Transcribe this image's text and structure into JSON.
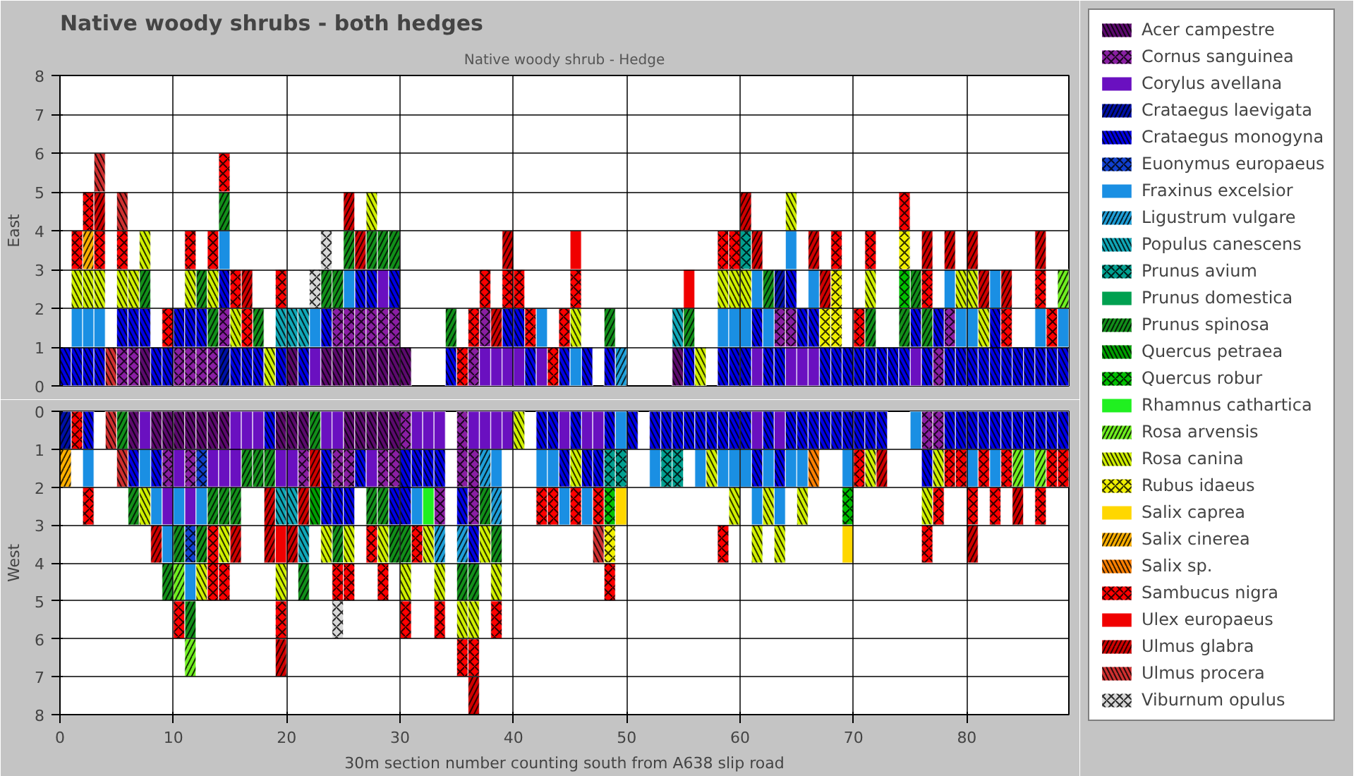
{
  "chart_data": [
    {
      "type": "bar",
      "title": "Native woody shrubs - both hedges",
      "subtitle": "Native woody shrub - Hedge",
      "ylabel": "East",
      "xlim": [
        0,
        89
      ],
      "ylim": [
        0,
        8
      ],
      "xticks": [
        0,
        10,
        20,
        30,
        40,
        50,
        60,
        70,
        80
      ],
      "yticks": [
        0,
        1,
        2,
        3,
        4,
        5,
        6,
        7,
        8
      ],
      "grid": true,
      "legend": "right",
      "tick_labels": "y",
      "series": [
        {
          "name": "Acer campestre",
          "color": "#5c0a6e",
          "x": [
            7.5,
            20.5,
            23.5,
            24.5,
            25.5,
            26.5,
            27.5,
            28.5,
            29.5,
            30.5,
            54.5
          ],
          "base": [
            0,
            0,
            0,
            0,
            0,
            0,
            0,
            0,
            0,
            0,
            0
          ],
          "values": [
            1,
            1,
            1,
            1,
            1,
            1,
            1,
            1,
            1,
            1,
            1
          ]
        },
        {
          "name": "Cornus sanguinea",
          "color": "#8a1fa3",
          "x": [
            5.5,
            6.5,
            10.5,
            11.5,
            12.5,
            13.5,
            14.5,
            24.5,
            25.5,
            26.5,
            27.5,
            28.5,
            29.5,
            36.5,
            37.5,
            63.5,
            64.5,
            77.5,
            78.5
          ],
          "base": [
            0,
            0,
            0,
            0,
            0,
            0,
            1,
            1,
            1,
            1,
            1,
            1,
            1,
            0,
            1,
            1,
            1,
            0,
            1
          ],
          "values": [
            1,
            1,
            1,
            1,
            1,
            1,
            1,
            1,
            1,
            1,
            1,
            1,
            1,
            1,
            1,
            1,
            1,
            1,
            1
          ]
        },
        {
          "name": "Corylus avellana",
          "color": "#6a10c0",
          "x": [
            22.5,
            28.5,
            37.5,
            38.5,
            39.5,
            40.5,
            42.5,
            61.5,
            64.5,
            65.5,
            66.5,
            75.5
          ],
          "base": [
            0,
            2,
            0,
            0,
            0,
            0,
            0,
            0,
            0,
            0,
            0,
            0
          ],
          "values": [
            1,
            1,
            1,
            1,
            1,
            1,
            1,
            1,
            1,
            1,
            1,
            1
          ]
        },
        {
          "name": "Crataegus laevigata",
          "color": "#0010a8",
          "x": [
            14.5,
            63.5
          ],
          "base": [
            0,
            2
          ],
          "values": [
            1,
            1
          ]
        },
        {
          "name": "Crataegus monogyna",
          "color": "#0000e6",
          "x": [
            0.5,
            1.5,
            2.5,
            3.5,
            5.5,
            6.5,
            7.5,
            8.5,
            9.5,
            10.5,
            11.5,
            12.5,
            14.5,
            15.5,
            16.5,
            17.5,
            19.5,
            21.5,
            23.5,
            26.5,
            27.5,
            29.5,
            34.5,
            39.5,
            40.5,
            41.5,
            44.5,
            46.5,
            48.5,
            55.5,
            58.5,
            59.5,
            60.5,
            61.5,
            62.5,
            63.5,
            64.5,
            65.5,
            66.5,
            67.5,
            68.5,
            69.5,
            70.5,
            71.5,
            72.5,
            73.5,
            74.5,
            75.5,
            76.5,
            77.5,
            78.5,
            79.5,
            80.5,
            81.5,
            82.5,
            83.5,
            84.5,
            85.5,
            86.5,
            87.5,
            88.5
          ],
          "base": [
            0,
            0,
            0,
            0,
            1,
            1,
            1,
            0,
            0,
            1,
            1,
            1,
            2,
            0,
            0,
            0,
            0,
            0,
            1,
            2,
            2,
            2,
            0,
            1,
            1,
            0,
            0,
            0,
            0,
            0,
            0,
            0,
            0,
            1,
            0,
            0,
            2,
            1,
            1,
            0,
            0,
            0,
            0,
            0,
            0,
            0,
            0,
            1,
            0,
            1,
            0,
            0,
            0,
            0,
            0,
            0,
            0,
            0,
            0,
            0,
            0
          ],
          "values": [
            1,
            1,
            1,
            1,
            1,
            1,
            1,
            1,
            1,
            1,
            1,
            1,
            1,
            1,
            1,
            1,
            1,
            1,
            1,
            1,
            1,
            1,
            1,
            1,
            1,
            1,
            1,
            1,
            1,
            1,
            1,
            1,
            1,
            1,
            1,
            1,
            1,
            1,
            1,
            1,
            1,
            1,
            1,
            1,
            1,
            1,
            1,
            1,
            1,
            1,
            1,
            1,
            1,
            1,
            2,
            1,
            1,
            1,
            1,
            1,
            1
          ]
        },
        {
          "name": "Euonymus europaeus",
          "color": "#1040d0"
        },
        {
          "name": "Fraxinus excelsior",
          "color": "#1a8fe3",
          "x": [
            1.5,
            2.5,
            3.5,
            14.5,
            22.5,
            25.5,
            42.5,
            45.5,
            58.5,
            59.5,
            60.5,
            61.5,
            62.5,
            64.5,
            66.5,
            78.5,
            79.5,
            80.5,
            82.5,
            86.5,
            88.5
          ],
          "base": [
            1,
            1,
            1,
            3,
            1,
            2,
            1,
            0,
            1,
            1,
            1,
            2,
            1,
            3,
            2,
            2,
            1,
            1,
            2,
            1,
            1
          ],
          "values": [
            1,
            1,
            1,
            1,
            1,
            1,
            1,
            1,
            1,
            1,
            1,
            1,
            1,
            1,
            1,
            1,
            1,
            1,
            1,
            1,
            1
          ]
        },
        {
          "name": "Ligustrum vulgare",
          "color": "#1fa0da",
          "x": [
            49.5
          ],
          "base": [
            0
          ],
          "values": [
            1
          ]
        },
        {
          "name": "Populus canescens",
          "color": "#10a8b8",
          "x": [
            19.5,
            20.5,
            21.5,
            54.5
          ],
          "base": [
            1,
            1,
            1,
            1
          ],
          "values": [
            1,
            1,
            1,
            1
          ]
        },
        {
          "name": "Prunus avium",
          "color": "#00a090",
          "x": [
            60.5
          ],
          "base": [
            3
          ],
          "values": [
            1
          ]
        },
        {
          "name": "Prunus domestica",
          "color": "#00a050"
        },
        {
          "name": "Prunus spinosa",
          "color": "#12901a",
          "x": [
            7.5,
            12.5,
            13.5,
            14.5,
            17.5,
            23.5,
            24.5,
            25.5,
            27.5,
            28.5,
            29.5,
            34.5,
            48.5,
            55.5,
            62.5,
            71.5,
            74.5,
            75.5,
            76.5
          ],
          "base": [
            2,
            2,
            1,
            4,
            1,
            2,
            2,
            3,
            3,
            3,
            3,
            1,
            1,
            1,
            2,
            1,
            1,
            2,
            1
          ],
          "values": [
            1,
            1,
            1,
            1,
            1,
            1,
            1,
            1,
            1,
            1,
            1,
            1,
            1,
            1,
            1,
            1,
            1,
            1,
            1
          ]
        },
        {
          "name": "Quercus petraea",
          "color": "#00a000"
        },
        {
          "name": "Quercus robur",
          "color": "#00c000",
          "x": [
            74.5
          ],
          "base": [
            2
          ],
          "values": [
            1
          ]
        },
        {
          "name": "Rhamnus cathartica",
          "color": "#20f020"
        },
        {
          "name": "Rosa arvensis",
          "color": "#70f020",
          "x": [
            88.5
          ],
          "base": [
            2
          ],
          "values": [
            1
          ]
        },
        {
          "name": "Rosa canina",
          "color": "#d0f000",
          "x": [
            1.5,
            2.5,
            3.5,
            5.5,
            6.5,
            7.5,
            11.5,
            13.5,
            15.5,
            18.5,
            27.5,
            45.5,
            56.5,
            58.5,
            59.5,
            60.5,
            64.5,
            71.5,
            79.5,
            80.5,
            81.5
          ],
          "base": [
            2,
            2,
            2,
            2,
            2,
            3,
            2,
            2,
            1,
            0,
            4,
            1,
            0,
            2,
            2,
            2,
            4,
            2,
            2,
            2,
            1
          ],
          "values": [
            1,
            1,
            1,
            1,
            1,
            1,
            1,
            1,
            1,
            1,
            1,
            1,
            1,
            1,
            1,
            1,
            1,
            1,
            1,
            1,
            1
          ]
        },
        {
          "name": "Rubus idaeus",
          "color": "#f0f000",
          "x": [
            67.5,
            68.5,
            74.5
          ],
          "base": [
            1,
            1,
            3
          ],
          "values": [
            1,
            2,
            1
          ]
        },
        {
          "name": "Salix caprea",
          "color": "#ffd700"
        },
        {
          "name": "Salix cinerea",
          "color": "#ffb000",
          "x": [
            2.5
          ],
          "base": [
            3
          ],
          "values": [
            1
          ]
        },
        {
          "name": "Salix sp.",
          "color": "#ff8000"
        },
        {
          "name": "Sambucus nigra",
          "color": "#ff0000",
          "x": [
            1.5,
            2.5,
            3.5,
            5.5,
            9.5,
            11.5,
            13.5,
            14.5,
            15.5,
            16.5,
            19.5,
            35.5,
            36.5,
            37.5,
            39.5,
            40.5,
            41.5,
            43.5,
            44.5,
            45.5,
            58.5,
            59.5,
            68.5,
            70.5,
            71.5,
            74.5,
            76.5,
            83.5,
            86.5,
            87.5
          ],
          "base": [
            3,
            4,
            3,
            3,
            1,
            3,
            3,
            5,
            2,
            1,
            2,
            0,
            1,
            2,
            2,
            2,
            1,
            0,
            1,
            2,
            3,
            3,
            3,
            1,
            3,
            4,
            2,
            1,
            2,
            1
          ],
          "values": [
            1,
            1,
            1,
            1,
            1,
            1,
            1,
            1,
            1,
            1,
            1,
            1,
            1,
            1,
            1,
            1,
            1,
            1,
            1,
            1,
            1,
            1,
            1,
            1,
            1,
            1,
            1,
            1,
            1,
            1
          ]
        },
        {
          "name": "Ulex europaeus",
          "color": "#f00000",
          "x": [
            45.5,
            55.5
          ],
          "base": [
            3,
            2
          ],
          "values": [
            1,
            1
          ]
        },
        {
          "name": "Ulmus glabra",
          "color": "#d00000",
          "x": [
            3.5,
            16.5,
            25.5,
            26.5,
            38.5,
            39.5,
            60.5,
            61.5,
            66.5,
            67.5,
            76.5,
            78.5,
            80.5,
            81.5,
            83.5,
            86.5
          ],
          "base": [
            4,
            2,
            4,
            3,
            1,
            3,
            4,
            3,
            3,
            2,
            3,
            3,
            3,
            2,
            2,
            3
          ],
          "values": [
            1,
            1,
            1,
            1,
            1,
            1,
            1,
            1,
            1,
            1,
            1,
            1,
            1,
            1,
            1,
            1
          ]
        },
        {
          "name": "Ulmus procera",
          "color": "#d03030",
          "x": [
            3.5,
            4.5,
            5.5
          ],
          "base": [
            5,
            0,
            4
          ],
          "values": [
            1,
            1,
            1
          ]
        },
        {
          "name": "Viburnum opulus",
          "color": "#d8d8d8",
          "x": [
            22.5,
            23.5
          ],
          "base": [
            2,
            3
          ],
          "values": [
            1,
            1
          ]
        }
      ]
    },
    {
      "type": "bar",
      "xlabel": "30m section number counting south from A638 slip road",
      "ylabel": "West",
      "xlim": [
        0,
        89
      ],
      "ylim": [
        8,
        0
      ],
      "xticks": [
        0,
        10,
        20,
        30,
        40,
        50,
        60,
        70,
        80
      ],
      "yticks": [
        0,
        1,
        2,
        3,
        4,
        5,
        6,
        7,
        8
      ],
      "grid": true,
      "series": [
        {
          "color": "#5c0a6e",
          "x": [
            6.5,
            8.5,
            9.5,
            10.5,
            11.5,
            12.5,
            13.5,
            14.5,
            19.5,
            20.5,
            21.5,
            25.5,
            26.5,
            27.5,
            28.5,
            29.5
          ],
          "base": [
            0,
            0,
            0,
            0,
            0,
            0,
            0,
            0,
            0,
            0,
            0,
            0,
            0,
            0,
            0,
            0
          ],
          "values": [
            1,
            1,
            1,
            1,
            1,
            1,
            1,
            1,
            1,
            1,
            1,
            1,
            1,
            1,
            1,
            1
          ]
        },
        {
          "color": "#8a1fa3",
          "x": [
            9.5,
            11.5,
            21.5,
            24.5,
            25.5,
            28.5,
            29.5,
            30.5,
            33.5,
            35.5,
            36.5,
            76.5,
            77.5
          ],
          "base": [
            1,
            1,
            1,
            1,
            1,
            1,
            1,
            0,
            2,
            0,
            1,
            0,
            0
          ],
          "values": [
            1,
            1,
            1,
            1,
            1,
            1,
            1,
            1,
            1,
            2,
            2,
            1,
            1
          ]
        },
        {
          "color": "#6a10c0",
          "x": [
            7.5,
            9.5,
            10.5,
            11.5,
            13.5,
            14.5,
            15.5,
            16.5,
            17.5,
            19.5,
            20.5,
            23.5,
            24.5,
            27.5,
            31.5,
            32.5,
            33.5,
            36.5,
            37.5,
            38.5,
            39.5,
            44.5,
            46.5,
            47.5,
            61.5,
            63.5
          ],
          "base": [
            0,
            2,
            1,
            2,
            1,
            1,
            0,
            0,
            0,
            1,
            1,
            0,
            0,
            1,
            0,
            0,
            0,
            0,
            0,
            0,
            0,
            0,
            0,
            0,
            0,
            0
          ],
          "values": [
            1,
            1,
            1,
            1,
            1,
            1,
            2,
            1,
            1,
            1,
            1,
            1,
            1,
            1,
            1,
            1,
            1,
            1,
            1,
            1,
            1,
            1,
            1,
            1,
            1,
            1
          ]
        },
        {
          "color": "#0010a8",
          "x": [
            0.5
          ],
          "base": [
            0
          ],
          "values": [
            1
          ]
        },
        {
          "color": "#0000e6",
          "x": [
            2.5,
            6.5,
            8.5,
            18.5,
            23.5,
            24.5,
            25.5,
            26.5,
            29.5,
            30.5,
            31.5,
            32.5,
            33.5,
            35.5,
            36.5,
            42.5,
            43.5,
            44.5,
            45.5,
            46.5,
            47.5,
            48.5,
            50.5,
            52.5,
            53.5,
            54.5,
            55.5,
            56.5,
            57.5,
            58.5,
            59.5,
            60.5,
            61.5,
            62.5,
            63.5,
            64.5,
            65.5,
            66.5,
            67.5,
            68.5,
            69.5,
            70.5,
            71.5,
            72.5,
            76.5,
            78.5,
            79.5,
            80.5,
            81.5,
            82.5,
            83.5,
            84.5,
            85.5,
            86.5,
            87.5,
            88.5
          ],
          "base": [
            0,
            1,
            1,
            0,
            1,
            2,
            2,
            1,
            2,
            1,
            1,
            1,
            1,
            2,
            3,
            0,
            0,
            1,
            0,
            1,
            1,
            0,
            0,
            0,
            0,
            0,
            0,
            0,
            0,
            0,
            0,
            0,
            1,
            0,
            1,
            0,
            0,
            0,
            0,
            0,
            0,
            0,
            0,
            0,
            1,
            0,
            0,
            0,
            0,
            0,
            0,
            0,
            0,
            0,
            0,
            0
          ],
          "values": [
            1,
            1,
            1,
            1,
            2,
            1,
            1,
            1,
            1,
            2,
            1,
            1,
            1,
            1,
            1,
            1,
            1,
            1,
            1,
            1,
            1,
            1,
            1,
            1,
            1,
            1,
            1,
            1,
            1,
            1,
            1,
            1,
            1,
            1,
            1,
            1,
            1,
            1,
            1,
            1,
            1,
            1,
            1,
            1,
            1,
            1,
            1,
            1,
            1,
            1,
            1,
            1,
            1,
            1,
            1,
            1
          ]
        },
        {
          "color": "#1040d0",
          "x": [
            11.5,
            12.5
          ],
          "base": [
            3,
            1
          ],
          "values": [
            1,
            1
          ]
        },
        {
          "color": "#1a8fe3",
          "x": [
            2.5,
            7.5,
            8.5,
            9.5,
            10.5,
            11.5,
            12.5,
            31.5,
            38.5,
            42.5,
            43.5,
            44.5,
            46.5,
            49.5,
            52.5,
            56.5,
            58.5,
            59.5,
            60.5,
            61.5,
            62.5,
            63.5,
            64.5,
            65.5,
            69.5,
            75.5,
            80.5,
            82.5,
            85.5
          ],
          "base": [
            1,
            1,
            2,
            3,
            2,
            4,
            2,
            2,
            1,
            1,
            1,
            2,
            2,
            0,
            1,
            1,
            1,
            1,
            1,
            2,
            1,
            2,
            1,
            1,
            1,
            0,
            1,
            1,
            1
          ],
          "values": [
            1,
            1,
            1,
            1,
            1,
            1,
            1,
            1,
            1,
            1,
            1,
            1,
            1,
            1,
            1,
            1,
            1,
            1,
            1,
            1,
            1,
            1,
            1,
            1,
            1,
            1,
            1,
            1,
            1
          ]
        },
        {
          "color": "#1fa0da",
          "x": [
            33.5,
            35.5,
            37.5,
            38.5
          ],
          "base": [
            3,
            3,
            1,
            2
          ],
          "values": [
            1,
            1,
            1,
            1
          ]
        },
        {
          "color": "#10a8b8",
          "x": [
            19.5,
            20.5,
            21.5
          ],
          "base": [
            2,
            2,
            3
          ],
          "values": [
            1,
            1,
            1
          ]
        },
        {
          "color": "#00a090",
          "x": [
            48.5,
            49.5,
            53.5,
            54.5
          ],
          "base": [
            1,
            1,
            1,
            1
          ],
          "values": [
            1,
            1,
            1,
            1
          ]
        },
        {
          "color": "#00a050"
        },
        {
          "color": "#12901a",
          "x": [
            5.5,
            6.5,
            9.5,
            10.5,
            11.5,
            12.5,
            13.5,
            14.5,
            15.5,
            16.5,
            17.5,
            18.5,
            21.5,
            22.5,
            24.5,
            27.5,
            28.5,
            29.5,
            30.5,
            35.5,
            36.5,
            37.5,
            38.5
          ],
          "base": [
            0,
            2,
            4,
            3,
            5,
            3,
            2,
            2,
            2,
            1,
            1,
            1,
            4,
            0,
            3,
            2,
            2,
            3,
            3,
            4,
            4,
            2,
            3
          ],
          "values": [
            1,
            1,
            1,
            1,
            1,
            1,
            1,
            1,
            1,
            1,
            1,
            1,
            1,
            1,
            1,
            1,
            1,
            1,
            1,
            1,
            1,
            1,
            1
          ]
        },
        {
          "color": "#00a000",
          "x": [
            22.5
          ],
          "base": [
            2
          ],
          "values": [
            1
          ]
        },
        {
          "color": "#00c000",
          "x": [
            48.5,
            69.5
          ],
          "base": [
            2,
            2
          ],
          "values": [
            1,
            1
          ]
        },
        {
          "color": "#20f020",
          "x": [
            32.5
          ],
          "base": [
            2
          ],
          "values": [
            1
          ]
        },
        {
          "color": "#70f020",
          "x": [
            10.5,
            11.5,
            84.5,
            86.5
          ],
          "base": [
            4,
            6,
            1,
            1
          ],
          "values": [
            1,
            1,
            1,
            1
          ]
        },
        {
          "color": "#d0f000",
          "x": [
            7.5,
            12.5,
            14.5,
            19.5,
            23.5,
            25.5,
            28.5,
            30.5,
            32.5,
            33.5,
            35.5,
            36.5,
            37.5,
            38.5,
            40.5,
            45.5,
            57.5,
            59.5,
            61.5,
            62.5,
            63.5,
            65.5,
            71.5,
            76.5,
            77.5
          ],
          "base": [
            2,
            4,
            3,
            4,
            3,
            3,
            3,
            4,
            3,
            4,
            5,
            5,
            3,
            4,
            0,
            1,
            1,
            2,
            3,
            2,
            3,
            2,
            1,
            2,
            1
          ],
          "values": [
            1,
            1,
            1,
            1,
            1,
            1,
            1,
            1,
            1,
            1,
            1,
            1,
            1,
            1,
            1,
            1,
            1,
            1,
            1,
            1,
            1,
            1,
            1,
            1,
            1
          ]
        },
        {
          "color": "#f0f000",
          "x": [
            48.5
          ],
          "base": [
            3
          ],
          "values": [
            1
          ]
        },
        {
          "color": "#ffd700",
          "x": [
            49.5,
            69.5
          ],
          "base": [
            2,
            3
          ],
          "values": [
            1,
            1
          ]
        },
        {
          "color": "#ffb000",
          "x": [
            0.5
          ],
          "base": [
            1
          ],
          "values": [
            1
          ]
        },
        {
          "color": "#ff8000",
          "x": [
            66.5
          ],
          "base": [
            1
          ],
          "values": [
            1
          ]
        },
        {
          "color": "#ff0000",
          "x": [
            1.5,
            2.5,
            10.5,
            13.5,
            14.5,
            19.5,
            24.5,
            25.5,
            27.5,
            28.5,
            30.5,
            31.5,
            33.5,
            35.5,
            36.5,
            38.5,
            42.5,
            43.5,
            45.5,
            47.5,
            48.5,
            58.5,
            70.5,
            76.5,
            77.5,
            78.5,
            79.5,
            80.5,
            81.5,
            82.5,
            83.5,
            86.5,
            87.5,
            88.5
          ],
          "base": [
            0,
            2,
            5,
            3,
            4,
            5,
            4,
            4,
            3,
            4,
            5,
            3,
            5,
            6,
            6,
            5,
            2,
            2,
            2,
            2,
            4,
            3,
            1,
            3,
            2,
            1,
            1,
            2,
            1,
            2,
            1,
            2,
            1,
            1
          ],
          "values": [
            1,
            1,
            1,
            2,
            1,
            1,
            1,
            1,
            1,
            1,
            1,
            1,
            1,
            1,
            1,
            1,
            1,
            1,
            1,
            1,
            1,
            1,
            1,
            1,
            1,
            1,
            1,
            1,
            1,
            1,
            1,
            1,
            1,
            1
          ]
        },
        {
          "color": "#f00000",
          "x": [
            19.5
          ],
          "base": [
            3
          ],
          "values": [
            1
          ]
        },
        {
          "color": "#d00000",
          "x": [
            8.5,
            15.5,
            18.5,
            19.5,
            20.5,
            21.5,
            22.5,
            36.5,
            72.5,
            80.5,
            84.5
          ],
          "base": [
            3,
            3,
            2,
            6,
            3,
            2,
            1,
            7,
            1,
            3,
            2
          ],
          "values": [
            1,
            1,
            2,
            1,
            1,
            1,
            1,
            1,
            1,
            1,
            1
          ]
        },
        {
          "color": "#d03030",
          "x": [
            4.5,
            5.5,
            47.5
          ],
          "base": [
            0,
            1,
            3
          ],
          "values": [
            1,
            1,
            1
          ]
        },
        {
          "color": "#d8d8d8",
          "x": [
            24.5
          ],
          "base": [
            5
          ],
          "values": [
            1
          ]
        }
      ]
    }
  ]
}
